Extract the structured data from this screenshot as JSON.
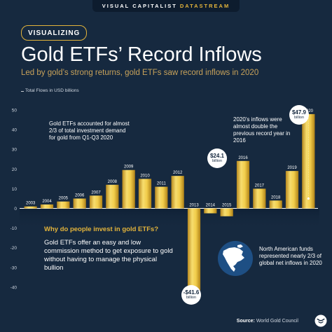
{
  "header": {
    "brand": "VISUAL CAPITALIST",
    "product": "DATASTREAM"
  },
  "tag": "VISUALIZING",
  "title": "Gold ETFs’ Record Inflows",
  "subtitle": "Led by gold’s strong returns, gold ETFs saw record inflows in 2020",
  "annotations": {
    "investment_demand": "Gold ETFs accounted for almost 2/3 of total investment demand for gold from Q1-Q3 2020",
    "inflows_2020": "2020’s inflows were almost double the previous record year in 2016",
    "why_title": "Why do people invest in gold ETFs?",
    "why_body": "Gold ETFs offer an easy and low commission method to get exposure to gold without having to manage the physical bullion",
    "north_america": "North American funds represented nearly 2/3 of global net inflows in 2020"
  },
  "callouts": [
    {
      "value": "$47.9",
      "unit": "billion"
    },
    {
      "value": "$24.1",
      "unit": "billion"
    },
    {
      "value": "-$41.6",
      "unit": "billion"
    }
  ],
  "footer": {
    "source_label": "Source:",
    "source_text": "World Gold Council"
  },
  "colors": {
    "background": "#16293f",
    "gold": "#e2b33b",
    "gold_light": "#f5dc7a",
    "gold_dark": "#a8801f",
    "axis_text": "#d0d7e0"
  },
  "icons": {
    "logo": "visual-capitalist-logo",
    "map": "north-america-map"
  },
  "chart_data": {
    "type": "bar",
    "title": "Gold ETFs’ Record Inflows",
    "ylabel": "Total Flows in USD billions",
    "ylim": [
      -45,
      50
    ],
    "yticks": [
      50,
      40,
      30,
      20,
      10,
      0,
      -10,
      -20,
      -30,
      -40
    ],
    "grid": false,
    "categories": [
      "2003",
      "2004",
      "2005",
      "2006",
      "2007",
      "2008",
      "2009",
      "2010",
      "2011",
      "2012",
      "2013",
      "2014",
      "2015",
      "2016",
      "2017",
      "2018",
      "2019",
      "2020"
    ],
    "values": [
      1.0,
      2.0,
      3.5,
      5.0,
      6.5,
      12.0,
      19.5,
      15.0,
      11.0,
      16.5,
      -41.6,
      -2.5,
      -4.0,
      24.1,
      10.0,
      4.0,
      19.0,
      47.9
    ]
  }
}
